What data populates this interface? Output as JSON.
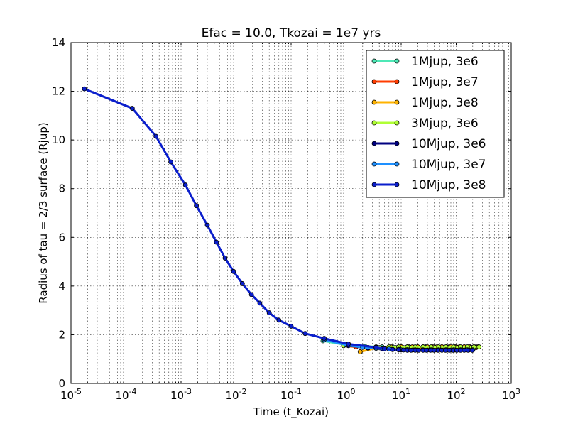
{
  "chart_data": {
    "type": "line",
    "title": "Efac = 10.0, Tkozai = 1e7 yrs",
    "xlabel": "Time (t_Kozai)",
    "ylabel": "Radius of tau = 2/3 surface (Rjup)",
    "xscale": "log",
    "xlim": [
      1e-05,
      1000
    ],
    "ylim": [
      0,
      14
    ],
    "grid": true,
    "legend_position": "top-right",
    "x_major_ticks": [
      {
        "base": "10",
        "exp": "-5",
        "value": 1e-05
      },
      {
        "base": "10",
        "exp": "-4",
        "value": 0.0001
      },
      {
        "base": "10",
        "exp": "-3",
        "value": 0.001
      },
      {
        "base": "10",
        "exp": "-2",
        "value": 0.01
      },
      {
        "base": "10",
        "exp": "-1",
        "value": 0.1
      },
      {
        "base": "10",
        "exp": "0",
        "value": 1
      },
      {
        "base": "10",
        "exp": "1",
        "value": 10
      },
      {
        "base": "10",
        "exp": "2",
        "value": 100
      },
      {
        "base": "10",
        "exp": "3",
        "value": 1000
      }
    ],
    "y_ticks": [
      {
        "label": "0",
        "value": 0
      },
      {
        "label": "2",
        "value": 2
      },
      {
        "label": "4",
        "value": 4
      },
      {
        "label": "6",
        "value": 6
      },
      {
        "label": "8",
        "value": 8
      },
      {
        "label": "10",
        "value": 10
      },
      {
        "label": "12",
        "value": 12
      },
      {
        "label": "14",
        "value": 14
      }
    ],
    "series": [
      {
        "name": "1Mjup, 3e6",
        "color": "#4ee8b6",
        "x": [
          0.38,
          0.9,
          2.2,
          4.5,
          7,
          10,
          14,
          20,
          28,
          40,
          55,
          75,
          100,
          140,
          180,
          230
        ],
        "y": [
          1.75,
          1.6,
          1.52,
          1.5,
          1.5,
          1.5,
          1.5,
          1.5,
          1.5,
          1.5,
          1.5,
          1.5,
          1.5,
          1.5,
          1.5,
          1.5
        ]
      },
      {
        "name": "1Mjup, 3e7",
        "color": "#ff3c00",
        "x": [
          0.9,
          1.5,
          2.5,
          4,
          6,
          8,
          11,
          15,
          20,
          27,
          35,
          45,
          60,
          80,
          105,
          135,
          175,
          230
        ],
        "y": [
          1.55,
          1.5,
          1.48,
          1.47,
          1.47,
          1.47,
          1.47,
          1.47,
          1.47,
          1.47,
          1.47,
          1.47,
          1.47,
          1.47,
          1.47,
          1.47,
          1.47,
          1.47
        ]
      },
      {
        "name": "1Mjup, 3e8",
        "color": "#ffb300",
        "x": [
          1.8,
          3.5,
          6.5,
          10,
          13,
          16,
          20,
          25,
          30,
          37,
          45,
          55,
          67,
          80,
          95,
          115,
          140,
          170,
          210,
          250
        ],
        "y": [
          1.3,
          1.45,
          1.5,
          1.5,
          1.5,
          1.5,
          1.5,
          1.5,
          1.5,
          1.5,
          1.5,
          1.5,
          1.5,
          1.5,
          1.5,
          1.5,
          1.5,
          1.5,
          1.5,
          1.5
        ]
      },
      {
        "name": "3Mjup, 3e6",
        "color": "#b0ff35",
        "x": [
          0.9,
          2,
          3.5,
          6,
          9,
          13,
          18,
          25,
          35,
          48,
          65,
          90,
          120,
          160,
          210,
          260
        ],
        "y": [
          1.55,
          1.5,
          1.5,
          1.5,
          1.5,
          1.5,
          1.5,
          1.5,
          1.5,
          1.5,
          1.5,
          1.5,
          1.5,
          1.5,
          1.5,
          1.5
        ]
      },
      {
        "name": "10Mjup, 3e6",
        "color": "#000080",
        "x": [
          1.1,
          2.5,
          4.5,
          7,
          10,
          13,
          16,
          20,
          25,
          30,
          37,
          45,
          55,
          67,
          80,
          95,
          115,
          140,
          170,
          200
        ],
        "y": [
          1.55,
          1.45,
          1.42,
          1.4,
          1.38,
          1.37,
          1.37,
          1.37,
          1.37,
          1.37,
          1.37,
          1.37,
          1.37,
          1.37,
          1.37,
          1.37,
          1.37,
          1.37,
          1.37,
          1.37
        ]
      },
      {
        "name": "10Mjup, 3e7",
        "color": "#1e90ff",
        "x": [
          0.4,
          1,
          2,
          3.5,
          6,
          9,
          13,
          18,
          25,
          35,
          48,
          65,
          90,
          120,
          160,
          200
        ],
        "y": [
          1.8,
          1.58,
          1.48,
          1.44,
          1.41,
          1.4,
          1.39,
          1.38,
          1.38,
          1.38,
          1.38,
          1.38,
          1.38,
          1.38,
          1.38,
          1.38
        ]
      },
      {
        "name": "10Mjup, 3e8",
        "color": "#0a1ecc",
        "x": [
          1.75e-05,
          0.00013,
          0.00035,
          0.00065,
          0.0012,
          0.0019,
          0.003,
          0.0044,
          0.0063,
          0.009,
          0.013,
          0.019,
          0.027,
          0.04,
          0.06,
          0.1,
          0.18,
          0.4,
          1.1,
          3.5,
          5,
          7,
          9,
          11,
          13,
          15,
          18,
          21,
          25,
          29,
          34,
          40,
          47,
          55,
          64,
          75,
          88,
          103,
          120,
          140,
          165,
          195
        ],
        "y": [
          12.1,
          11.3,
          10.15,
          9.1,
          8.15,
          7.3,
          6.5,
          5.8,
          5.15,
          4.6,
          4.1,
          3.65,
          3.3,
          2.9,
          2.6,
          2.35,
          2.05,
          1.85,
          1.62,
          1.48,
          1.42,
          1.39,
          1.38,
          1.37,
          1.36,
          1.36,
          1.36,
          1.36,
          1.36,
          1.36,
          1.36,
          1.36,
          1.36,
          1.36,
          1.36,
          1.36,
          1.36,
          1.36,
          1.36,
          1.36,
          1.36,
          1.36
        ]
      }
    ]
  }
}
